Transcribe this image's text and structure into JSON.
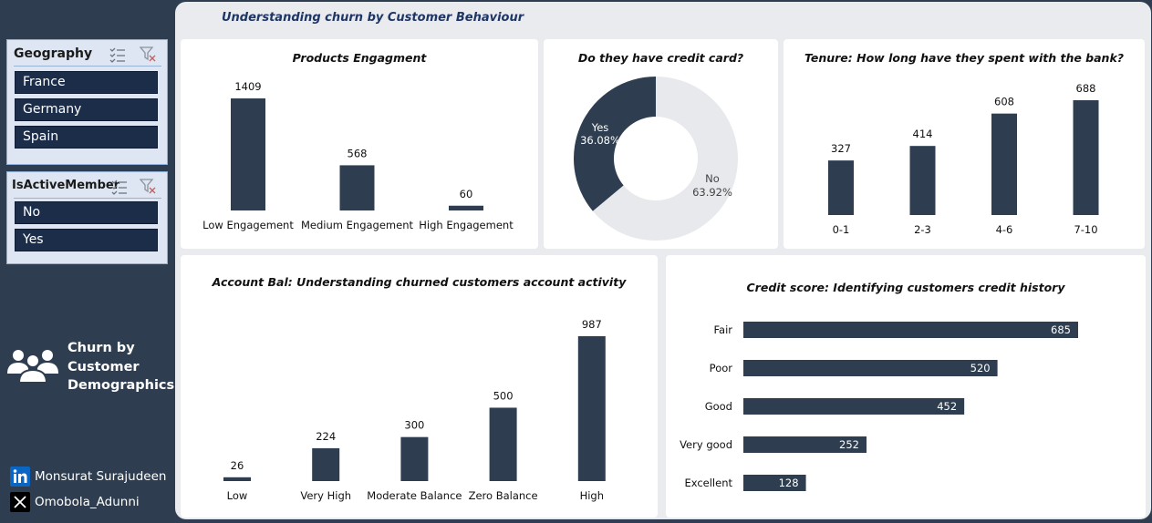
{
  "dashboard": {
    "title": "Understanding churn by Customer Behaviour"
  },
  "sidebar": {
    "geography": {
      "title": "Geography",
      "items": [
        "France",
        "Germany",
        "Spain"
      ]
    },
    "active_member": {
      "title": "IsActiveMember",
      "items": [
        "No",
        "Yes"
      ]
    },
    "brand": {
      "line1": "Churn by",
      "line2": "Customer",
      "line3": "Demographics",
      "icon": "people-group-icon"
    },
    "socials": [
      {
        "icon": "linkedin-icon",
        "label": "Monsurat Surajudeen"
      },
      {
        "icon": "x-icon",
        "label": "Omobola_Adunni"
      }
    ]
  },
  "colors": {
    "bar": "#2e3e50",
    "donut_no": "#e8e9ec",
    "panel": "#e9ebee"
  },
  "chart_data": [
    {
      "id": "products",
      "type": "bar",
      "title": "Products Engagment",
      "categories": [
        "Low Engagement",
        "Medium Engagement",
        "High Engagement"
      ],
      "values": [
        1409,
        568,
        60
      ]
    },
    {
      "id": "credit_card",
      "type": "pie",
      "title": "Do they have credit card?",
      "labels": [
        "Yes",
        "No"
      ],
      "values": [
        36.08,
        63.92
      ],
      "display": [
        "36.08%",
        "63.92%"
      ]
    },
    {
      "id": "tenure",
      "type": "bar",
      "title": "Tenure: How long have they spent with the bank?",
      "categories": [
        "0-1",
        "2-3",
        "4-6",
        "7-10"
      ],
      "values": [
        327,
        414,
        608,
        688
      ]
    },
    {
      "id": "balance",
      "type": "bar",
      "title": "Account Bal: Understanding churned customers account activity",
      "categories": [
        "Low",
        "Very High",
        "Moderate Balance",
        "Zero Balance",
        "High"
      ],
      "values": [
        26,
        224,
        300,
        500,
        987
      ]
    },
    {
      "id": "credit_score",
      "type": "bar",
      "orientation": "horizontal",
      "title": "Credit score: Identifying customers credit history",
      "categories": [
        "Fair",
        "Poor",
        "Good",
        "Very good",
        "Excellent"
      ],
      "values": [
        685,
        520,
        452,
        252,
        128
      ]
    }
  ]
}
